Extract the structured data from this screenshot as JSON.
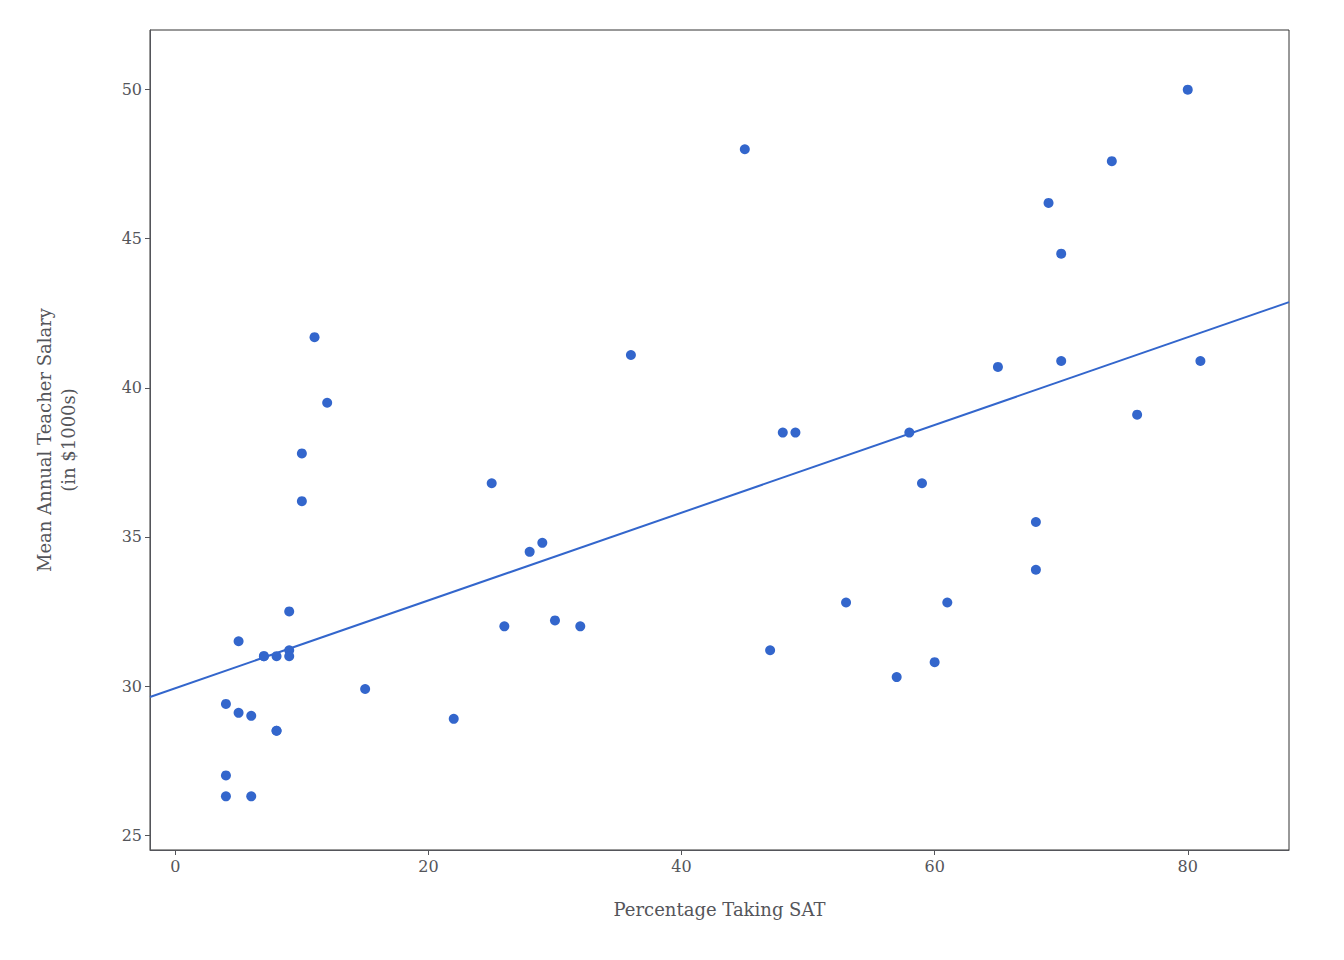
{
  "chart_data": {
    "type": "scatter",
    "xlabel": "Percentage Taking SAT",
    "ylabel": "Mean Annual Teacher Salary\n(in $1000s)",
    "xlim": [
      -2,
      88
    ],
    "ylim": [
      24.5,
      52
    ],
    "xticks": [
      0,
      20,
      40,
      60,
      80
    ],
    "yticks": [
      25,
      30,
      35,
      40,
      45,
      50
    ],
    "grid": false,
    "series": [
      {
        "type": "scatter",
        "color": "#3366CC",
        "x": [
          4,
          4,
          4,
          5,
          5,
          6,
          6,
          7,
          7,
          8,
          8,
          8,
          9,
          9,
          9,
          10,
          10,
          11,
          12,
          15,
          22,
          25,
          26,
          28,
          29,
          30,
          32,
          36,
          45,
          47,
          48,
          49,
          53,
          57,
          58,
          59,
          60,
          61,
          65,
          68,
          68,
          69,
          70,
          70,
          74,
          76,
          80,
          81
        ],
        "values": [
          26.3,
          27.0,
          29.4,
          29.1,
          31.5,
          26.3,
          29.0,
          31.0,
          31.0,
          31.0,
          28.5,
          28.5,
          31.2,
          32.5,
          31.0,
          37.8,
          36.2,
          41.7,
          39.5,
          29.9,
          28.9,
          36.8,
          32.0,
          34.5,
          34.8,
          32.2,
          32.0,
          41.1,
          48.0,
          31.2,
          38.5,
          38.5,
          32.8,
          30.3,
          38.5,
          36.8,
          30.8,
          32.8,
          40.7,
          33.9,
          35.5,
          46.2,
          44.5,
          40.9,
          47.6,
          39.1,
          50.0,
          40.9
        ]
      },
      {
        "type": "line",
        "color": "#3366CC",
        "x": [
          -2,
          88
        ],
        "values": [
          29.633,
          42.873
        ]
      }
    ]
  }
}
